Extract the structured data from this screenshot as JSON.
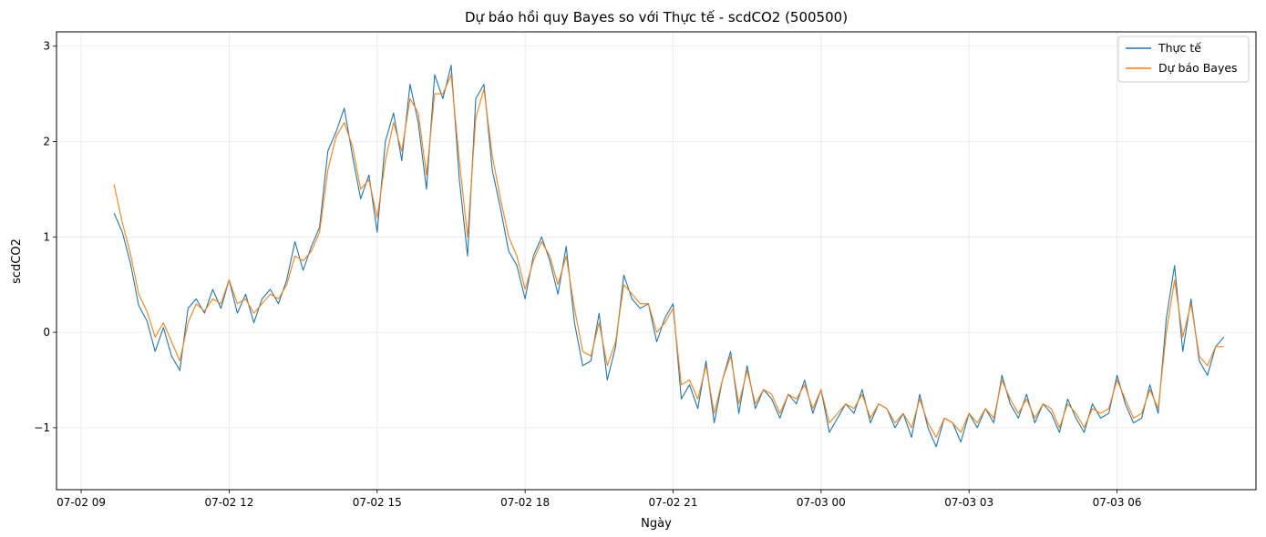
{
  "chart_data": {
    "type": "line",
    "title": "Dự báo hồi quy Bayes so với Thực tế - scdCO2 (500500)",
    "xlabel": "Ngày",
    "ylabel": "scdCO2",
    "x_ticks": [
      "2025-07-02 09:00",
      "2025-07-02 12:00",
      "2025-07-02 15:00",
      "2025-07-02 18:00",
      "2025-07-02 21:00",
      "2025-07-03 00:00",
      "2025-07-03 03:00",
      "2025-07-03 06:00"
    ],
    "x_tick_labels": [
      "07-02 09",
      "07-02 12",
      "07-02 15",
      "07-02 18",
      "07-02 21",
      "07-03 00",
      "07-03 03",
      "07-03 06"
    ],
    "y_ticks": [
      -1,
      0,
      1,
      2,
      3
    ],
    "y_tick_labels": [
      "−1",
      "0",
      "1",
      "2",
      "3"
    ],
    "xlim": [
      "2025-07-02 08:30",
      "2025-07-03 08:49"
    ],
    "ylim": [
      -1.65,
      3.15
    ],
    "grid": true,
    "legend_position": "top-right",
    "series": [
      {
        "name": "Thực tế",
        "color": "#1f77b4",
        "x": [
          "2025-07-02 09:40",
          "2025-07-02 09:50",
          "2025-07-02 10:00",
          "2025-07-02 10:10",
          "2025-07-02 10:20",
          "2025-07-02 10:30",
          "2025-07-02 10:40",
          "2025-07-02 10:50",
          "2025-07-02 11:00",
          "2025-07-02 11:10",
          "2025-07-02 11:20",
          "2025-07-02 11:30",
          "2025-07-02 11:40",
          "2025-07-02 11:50",
          "2025-07-02 12:00",
          "2025-07-02 12:10",
          "2025-07-02 12:20",
          "2025-07-02 12:30",
          "2025-07-02 12:40",
          "2025-07-02 12:50",
          "2025-07-02 13:00",
          "2025-07-02 13:10",
          "2025-07-02 13:20",
          "2025-07-02 13:30",
          "2025-07-02 13:40",
          "2025-07-02 13:50",
          "2025-07-02 14:00",
          "2025-07-02 14:10",
          "2025-07-02 14:20",
          "2025-07-02 14:30",
          "2025-07-02 14:40",
          "2025-07-02 14:50",
          "2025-07-02 15:00",
          "2025-07-02 15:10",
          "2025-07-02 15:20",
          "2025-07-02 15:30",
          "2025-07-02 15:40",
          "2025-07-02 15:50",
          "2025-07-02 16:00",
          "2025-07-02 16:10",
          "2025-07-02 16:20",
          "2025-07-02 16:30",
          "2025-07-02 16:40",
          "2025-07-02 16:50",
          "2025-07-02 17:00",
          "2025-07-02 17:10",
          "2025-07-02 17:20",
          "2025-07-02 17:30",
          "2025-07-02 17:40",
          "2025-07-02 17:50",
          "2025-07-02 18:00",
          "2025-07-02 18:10",
          "2025-07-02 18:20",
          "2025-07-02 18:30",
          "2025-07-02 18:40",
          "2025-07-02 18:50",
          "2025-07-02 19:00",
          "2025-07-02 19:10",
          "2025-07-02 19:20",
          "2025-07-02 19:30",
          "2025-07-02 19:40",
          "2025-07-02 19:50",
          "2025-07-02 20:00",
          "2025-07-02 20:10",
          "2025-07-02 20:20",
          "2025-07-02 20:30",
          "2025-07-02 20:40",
          "2025-07-02 20:50",
          "2025-07-02 21:00",
          "2025-07-02 21:10",
          "2025-07-02 21:20",
          "2025-07-02 21:30",
          "2025-07-02 21:40",
          "2025-07-02 21:50",
          "2025-07-02 22:00",
          "2025-07-02 22:10",
          "2025-07-02 22:20",
          "2025-07-02 22:30",
          "2025-07-02 22:40",
          "2025-07-02 22:50",
          "2025-07-02 23:00",
          "2025-07-02 23:10",
          "2025-07-02 23:20",
          "2025-07-02 23:30",
          "2025-07-02 23:40",
          "2025-07-02 23:50",
          "2025-07-03 00:00",
          "2025-07-03 00:10",
          "2025-07-03 00:20",
          "2025-07-03 00:30",
          "2025-07-03 00:40",
          "2025-07-03 00:50",
          "2025-07-03 01:00",
          "2025-07-03 01:10",
          "2025-07-03 01:20",
          "2025-07-03 01:30",
          "2025-07-03 01:40",
          "2025-07-03 01:50",
          "2025-07-03 02:00",
          "2025-07-03 02:10",
          "2025-07-03 02:20",
          "2025-07-03 02:30",
          "2025-07-03 02:40",
          "2025-07-03 02:50",
          "2025-07-03 03:00",
          "2025-07-03 03:10",
          "2025-07-03 03:20",
          "2025-07-03 03:30",
          "2025-07-03 03:40",
          "2025-07-03 03:50",
          "2025-07-03 04:00",
          "2025-07-03 04:10",
          "2025-07-03 04:20",
          "2025-07-03 04:30",
          "2025-07-03 04:40",
          "2025-07-03 04:50",
          "2025-07-03 05:00",
          "2025-07-03 05:10",
          "2025-07-03 05:20",
          "2025-07-03 05:30",
          "2025-07-03 05:40",
          "2025-07-03 05:50",
          "2025-07-03 06:00",
          "2025-07-03 06:10",
          "2025-07-03 06:20",
          "2025-07-03 06:30",
          "2025-07-03 06:40",
          "2025-07-03 06:50",
          "2025-07-03 07:00",
          "2025-07-03 07:10",
          "2025-07-03 07:20",
          "2025-07-03 07:30",
          "2025-07-03 07:40",
          "2025-07-03 07:50",
          "2025-07-03 08:00",
          "2025-07-03 08:10"
        ],
        "values": [
          1.25,
          1.05,
          0.72,
          0.28,
          0.12,
          -0.2,
          0.05,
          -0.25,
          -0.4,
          0.25,
          0.35,
          0.2,
          0.45,
          0.25,
          0.55,
          0.2,
          0.4,
          0.1,
          0.35,
          0.45,
          0.3,
          0.55,
          0.95,
          0.65,
          0.9,
          1.1,
          1.9,
          2.1,
          2.35,
          1.85,
          1.4,
          1.65,
          1.05,
          2.0,
          2.3,
          1.8,
          2.6,
          2.2,
          1.5,
          2.7,
          2.45,
          2.8,
          1.6,
          0.8,
          2.45,
          2.6,
          1.7,
          1.3,
          0.85,
          0.7,
          0.35,
          0.8,
          1.0,
          0.75,
          0.4,
          0.9,
          0.1,
          -0.35,
          -0.3,
          0.2,
          -0.5,
          -0.15,
          0.6,
          0.35,
          0.25,
          0.3,
          -0.1,
          0.15,
          0.3,
          -0.7,
          -0.55,
          -0.8,
          -0.3,
          -0.95,
          -0.5,
          -0.2,
          -0.85,
          -0.35,
          -0.8,
          -0.6,
          -0.7,
          -0.9,
          -0.65,
          -0.75,
          -0.5,
          -0.85,
          -0.6,
          -1.05,
          -0.9,
          -0.75,
          -0.85,
          -0.6,
          -0.95,
          -0.75,
          -0.8,
          -1.0,
          -0.85,
          -1.1,
          -0.65,
          -1.0,
          -1.2,
          -0.9,
          -0.95,
          -1.15,
          -0.85,
          -1.0,
          -0.8,
          -0.95,
          -0.45,
          -0.75,
          -0.9,
          -0.65,
          -0.95,
          -0.75,
          -0.85,
          -1.05,
          -0.7,
          -0.9,
          -1.05,
          -0.75,
          -0.9,
          -0.85,
          -0.45,
          -0.75,
          -0.95,
          -0.9,
          -0.55,
          -0.85,
          0.15,
          0.7,
          -0.2,
          0.35,
          -0.3,
          -0.45,
          -0.15,
          -0.05
        ]
      },
      {
        "name": "Dự báo Bayes",
        "color": "#ff7f0e",
        "x": [
          "2025-07-02 09:40",
          "2025-07-02 09:50",
          "2025-07-02 10:00",
          "2025-07-02 10:10",
          "2025-07-02 10:20",
          "2025-07-02 10:30",
          "2025-07-02 10:40",
          "2025-07-02 10:50",
          "2025-07-02 11:00",
          "2025-07-02 11:10",
          "2025-07-02 11:20",
          "2025-07-02 11:30",
          "2025-07-02 11:40",
          "2025-07-02 11:50",
          "2025-07-02 12:00",
          "2025-07-02 12:10",
          "2025-07-02 12:20",
          "2025-07-02 12:30",
          "2025-07-02 12:40",
          "2025-07-02 12:50",
          "2025-07-02 13:00",
          "2025-07-02 13:10",
          "2025-07-02 13:20",
          "2025-07-02 13:30",
          "2025-07-02 13:40",
          "2025-07-02 13:50",
          "2025-07-02 14:00",
          "2025-07-02 14:10",
          "2025-07-02 14:20",
          "2025-07-02 14:30",
          "2025-07-02 14:40",
          "2025-07-02 14:50",
          "2025-07-02 15:00",
          "2025-07-02 15:10",
          "2025-07-02 15:20",
          "2025-07-02 15:30",
          "2025-07-02 15:40",
          "2025-07-02 15:50",
          "2025-07-02 16:00",
          "2025-07-02 16:10",
          "2025-07-02 16:20",
          "2025-07-02 16:30",
          "2025-07-02 16:40",
          "2025-07-02 16:50",
          "2025-07-02 17:00",
          "2025-07-02 17:10",
          "2025-07-02 17:20",
          "2025-07-02 17:30",
          "2025-07-02 17:40",
          "2025-07-02 17:50",
          "2025-07-02 18:00",
          "2025-07-02 18:10",
          "2025-07-02 18:20",
          "2025-07-02 18:30",
          "2025-07-02 18:40",
          "2025-07-02 18:50",
          "2025-07-02 19:00",
          "2025-07-02 19:10",
          "2025-07-02 19:20",
          "2025-07-02 19:30",
          "2025-07-02 19:40",
          "2025-07-02 19:50",
          "2025-07-02 20:00",
          "2025-07-02 20:10",
          "2025-07-02 20:20",
          "2025-07-02 20:30",
          "2025-07-02 20:40",
          "2025-07-02 20:50",
          "2025-07-02 21:00",
          "2025-07-02 21:10",
          "2025-07-02 21:20",
          "2025-07-02 21:30",
          "2025-07-02 21:40",
          "2025-07-02 21:50",
          "2025-07-02 22:00",
          "2025-07-02 22:10",
          "2025-07-02 22:20",
          "2025-07-02 22:30",
          "2025-07-02 22:40",
          "2025-07-02 22:50",
          "2025-07-02 23:00",
          "2025-07-02 23:10",
          "2025-07-02 23:20",
          "2025-07-02 23:30",
          "2025-07-02 23:40",
          "2025-07-02 23:50",
          "2025-07-03 00:00",
          "2025-07-03 00:10",
          "2025-07-03 00:20",
          "2025-07-03 00:30",
          "2025-07-03 00:40",
          "2025-07-03 00:50",
          "2025-07-03 01:00",
          "2025-07-03 01:10",
          "2025-07-03 01:20",
          "2025-07-03 01:30",
          "2025-07-03 01:40",
          "2025-07-03 01:50",
          "2025-07-03 02:00",
          "2025-07-03 02:10",
          "2025-07-03 02:20",
          "2025-07-03 02:30",
          "2025-07-03 02:40",
          "2025-07-03 02:50",
          "2025-07-03 03:00",
          "2025-07-03 03:10",
          "2025-07-03 03:20",
          "2025-07-03 03:30",
          "2025-07-03 03:40",
          "2025-07-03 03:50",
          "2025-07-03 04:00",
          "2025-07-03 04:10",
          "2025-07-03 04:20",
          "2025-07-03 04:30",
          "2025-07-03 04:40",
          "2025-07-03 04:50",
          "2025-07-03 05:00",
          "2025-07-03 05:10",
          "2025-07-03 05:20",
          "2025-07-03 05:30",
          "2025-07-03 05:40",
          "2025-07-03 05:50",
          "2025-07-03 06:00",
          "2025-07-03 06:10",
          "2025-07-03 06:20",
          "2025-07-03 06:30",
          "2025-07-03 06:40",
          "2025-07-03 06:50",
          "2025-07-03 07:00",
          "2025-07-03 07:10",
          "2025-07-03 07:20",
          "2025-07-03 07:30",
          "2025-07-03 07:40",
          "2025-07-03 07:50",
          "2025-07-03 08:00",
          "2025-07-03 08:10"
        ],
        "values": [
          1.55,
          1.15,
          0.82,
          0.4,
          0.22,
          -0.05,
          0.1,
          -0.1,
          -0.3,
          0.1,
          0.3,
          0.22,
          0.35,
          0.3,
          0.55,
          0.3,
          0.35,
          0.2,
          0.3,
          0.4,
          0.35,
          0.5,
          0.8,
          0.75,
          0.85,
          1.05,
          1.7,
          2.05,
          2.2,
          1.95,
          1.5,
          1.6,
          1.2,
          1.8,
          2.2,
          1.9,
          2.45,
          2.3,
          1.65,
          2.5,
          2.5,
          2.7,
          1.8,
          1.0,
          2.25,
          2.55,
          1.85,
          1.4,
          1.0,
          0.8,
          0.45,
          0.75,
          0.95,
          0.8,
          0.5,
          0.8,
          0.25,
          -0.2,
          -0.25,
          0.1,
          -0.35,
          -0.1,
          0.5,
          0.4,
          0.3,
          0.3,
          0.0,
          0.1,
          0.25,
          -0.55,
          -0.5,
          -0.7,
          -0.35,
          -0.85,
          -0.5,
          -0.25,
          -0.75,
          -0.4,
          -0.75,
          -0.6,
          -0.65,
          -0.85,
          -0.65,
          -0.7,
          -0.55,
          -0.8,
          -0.6,
          -0.95,
          -0.85,
          -0.75,
          -0.8,
          -0.65,
          -0.9,
          -0.75,
          -0.8,
          -0.95,
          -0.85,
          -1.0,
          -0.7,
          -0.95,
          -1.1,
          -0.9,
          -0.95,
          -1.05,
          -0.85,
          -0.95,
          -0.8,
          -0.9,
          -0.5,
          -0.7,
          -0.85,
          -0.7,
          -0.9,
          -0.75,
          -0.8,
          -1.0,
          -0.75,
          -0.85,
          -1.0,
          -0.8,
          -0.85,
          -0.8,
          -0.5,
          -0.7,
          -0.9,
          -0.85,
          -0.6,
          -0.8,
          0.0,
          0.55,
          -0.05,
          0.3,
          -0.25,
          -0.35,
          -0.15,
          -0.15
        ]
      }
    ]
  }
}
